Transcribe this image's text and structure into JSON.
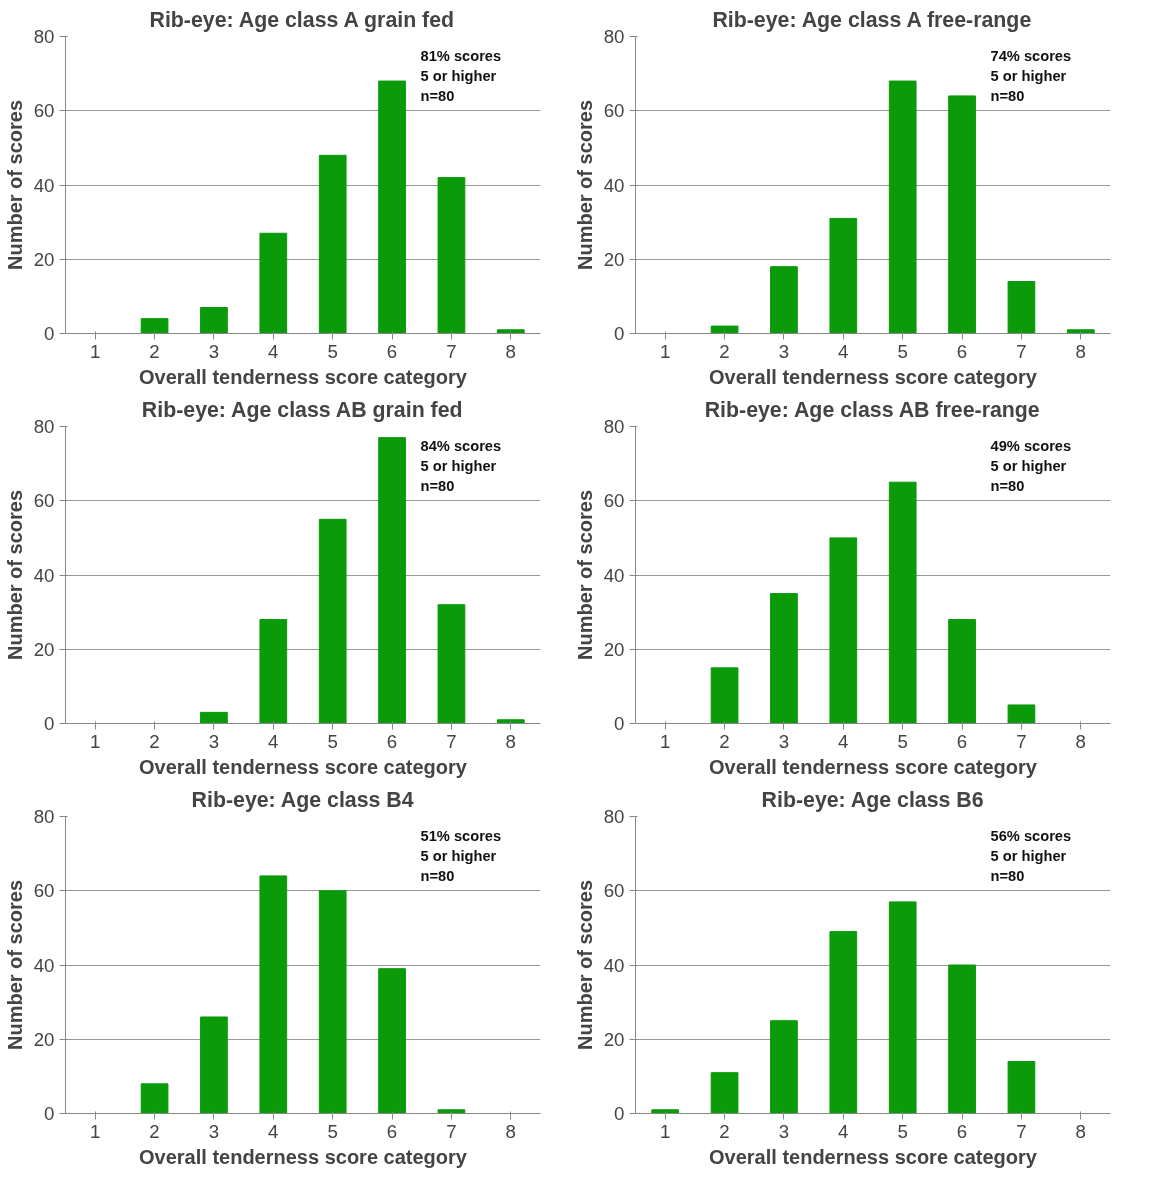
{
  "chart_data": [
    {
      "type": "bar",
      "title": "Rib-eye: Age class A grain fed",
      "xlabel": "Overall tenderness score category",
      "ylabel": "Number of scores",
      "categories": [
        "1",
        "2",
        "3",
        "4",
        "5",
        "6",
        "7",
        "8"
      ],
      "values": [
        0,
        4,
        7,
        27,
        48,
        68,
        42,
        1
      ],
      "color": "#0a9a0a",
      "ylim": [
        0,
        80
      ],
      "yticks": [
        0,
        20,
        40,
        60,
        80
      ],
      "grid": "y",
      "annotations": [
        "81% scores",
        "5 or higher",
        "n=80"
      ]
    },
    {
      "type": "bar",
      "title": "Rib-eye: Age class A free-range",
      "xlabel": "Overall tenderness score category",
      "ylabel": "Number of scores",
      "categories": [
        "1",
        "2",
        "3",
        "4",
        "5",
        "6",
        "7",
        "8"
      ],
      "values": [
        0,
        2,
        18,
        31,
        68,
        64,
        14,
        1
      ],
      "color": "#0a9a0a",
      "ylim": [
        0,
        80
      ],
      "yticks": [
        0,
        20,
        40,
        60,
        80
      ],
      "grid": "y",
      "annotations": [
        "74% scores",
        "5 or higher",
        "n=80"
      ]
    },
    {
      "type": "bar",
      "title": "Rib-eye: Age class AB grain fed",
      "xlabel": "Overall tenderness score category",
      "ylabel": "Number of scores",
      "categories": [
        "1",
        "2",
        "3",
        "4",
        "5",
        "6",
        "7",
        "8"
      ],
      "values": [
        0,
        0,
        3,
        28,
        55,
        77,
        32,
        1
      ],
      "color": "#0a9a0a",
      "ylim": [
        0,
        80
      ],
      "yticks": [
        0,
        20,
        40,
        60,
        80
      ],
      "grid": "y",
      "annotations": [
        "84% scores",
        "5 or higher",
        "n=80"
      ]
    },
    {
      "type": "bar",
      "title": "Rib-eye: Age class AB free-range",
      "xlabel": "Overall tenderness score category",
      "ylabel": "Number of scores",
      "categories": [
        "1",
        "2",
        "3",
        "4",
        "5",
        "6",
        "7",
        "8"
      ],
      "values": [
        0,
        15,
        35,
        50,
        65,
        28,
        5,
        0
      ],
      "color": "#0a9a0a",
      "ylim": [
        0,
        80
      ],
      "yticks": [
        0,
        20,
        40,
        60,
        80
      ],
      "grid": "y",
      "annotations": [
        "49% scores",
        "5 or higher",
        "n=80"
      ]
    },
    {
      "type": "bar",
      "title": "Rib-eye: Age class B4",
      "xlabel": "Overall tenderness score category",
      "ylabel": "Number of scores",
      "categories": [
        "1",
        "2",
        "3",
        "4",
        "5",
        "6",
        "7",
        "8"
      ],
      "values": [
        0,
        8,
        26,
        64,
        60,
        39,
        1,
        0
      ],
      "color": "#0a9a0a",
      "ylim": [
        0,
        80
      ],
      "yticks": [
        0,
        20,
        40,
        60,
        80
      ],
      "grid": "y",
      "annotations": [
        "51% scores",
        "5 or higher",
        "n=80"
      ]
    },
    {
      "type": "bar",
      "title": "Rib-eye: Age class B6",
      "xlabel": "Overall tenderness score category",
      "ylabel": "Number of scores",
      "categories": [
        "1",
        "2",
        "3",
        "4",
        "5",
        "6",
        "7",
        "8"
      ],
      "values": [
        1,
        11,
        25,
        49,
        57,
        40,
        14,
        0
      ],
      "color": "#0a9a0a",
      "ylim": [
        0,
        80
      ],
      "yticks": [
        0,
        20,
        40,
        60,
        80
      ],
      "grid": "y",
      "annotations": [
        "56% scores",
        "5 or higher",
        "n=80"
      ]
    }
  ]
}
